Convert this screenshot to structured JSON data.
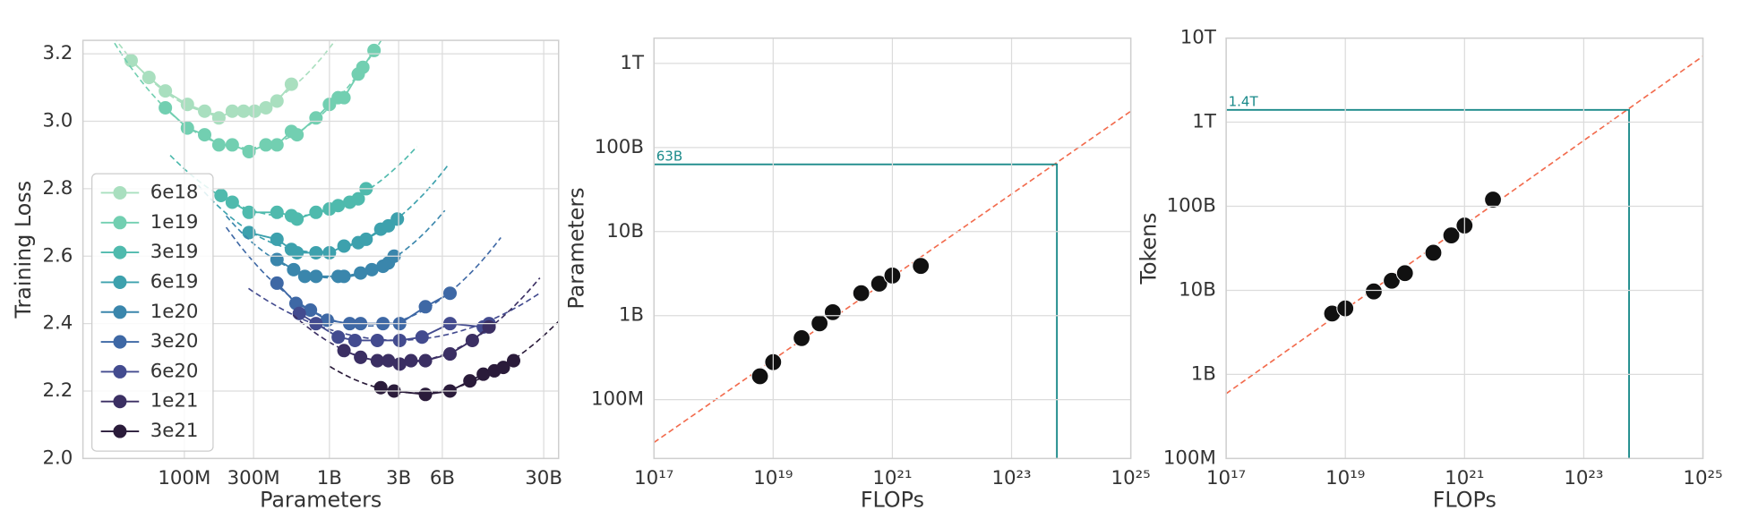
{
  "chart_data": [
    {
      "type": "line",
      "x_label": "Parameters",
      "y_label": "Training Loss",
      "xscale": "log",
      "grid": true,
      "legend": "lower left",
      "xlim": [
        20000000.0,
        38000000000.0
      ],
      "ylim": [
        2.0,
        3.24
      ],
      "xticks": [
        {
          "value": 100000000.0,
          "label": "100M"
        },
        {
          "value": 300000000.0,
          "label": "300M"
        },
        {
          "value": 1000000000.0,
          "label": "1B"
        },
        {
          "value": 3000000000.0,
          "label": "3B"
        },
        {
          "value": 6000000000.0,
          "label": "6B"
        },
        {
          "value": 30000000000.0,
          "label": "30B"
        }
      ],
      "yticks": [
        {
          "value": 2.0,
          "label": "2.0"
        },
        2.2,
        2.4,
        2.6,
        2.8,
        {
          "value": 3.0,
          "label": "3.0"
        },
        3.2
      ],
      "series": [
        {
          "name": "6e18",
          "color": "#a9dfbf",
          "x": [
            43000000.0,
            57000000.0,
            74000000.0,
            105000000.0,
            138000000.0,
            173000000.0,
            214000000.0,
            256000000.0,
            305000000.0,
            365000000.0,
            435000000.0,
            547000000.0
          ],
          "values": [
            3.18,
            3.13,
            3.09,
            3.05,
            3.03,
            3.01,
            3.03,
            3.03,
            3.03,
            3.04,
            3.06,
            3.11
          ]
        },
        {
          "name": "1e19",
          "color": "#72cfb1",
          "x": [
            74000000.0,
            105000000.0,
            138000000.0,
            173000000.0,
            214000000.0,
            279000000.0,
            365000000.0,
            435000000.0,
            547000000.0,
            598000000.0,
            808000000.0,
            1000000000.0,
            1150000000.0,
            1260000000.0,
            1580000000.0,
            1700000000.0,
            2030000000.0
          ],
          "values": [
            3.04,
            2.98,
            2.96,
            2.93,
            2.93,
            2.91,
            2.93,
            2.93,
            2.97,
            2.96,
            3.01,
            3.05,
            3.07,
            3.07,
            3.14,
            3.16,
            3.21
          ]
        },
        {
          "name": "3e19",
          "color": "#4fbaad",
          "x": [
            179000000.0,
            214000000.0,
            279000000.0,
            435000000.0,
            547000000.0,
            598000000.0,
            808000000.0,
            1000000000.0,
            1150000000.0,
            1380000000.0,
            1580000000.0,
            1790000000.0
          ],
          "values": [
            2.78,
            2.76,
            2.73,
            2.73,
            2.72,
            2.71,
            2.73,
            2.74,
            2.75,
            2.76,
            2.77,
            2.8
          ]
        },
        {
          "name": "6e19",
          "color": "#3da1ad",
          "x": [
            279000000.0,
            435000000.0,
            547000000.0,
            598000000.0,
            808000000.0,
            1000000000.0,
            1260000000.0,
            1580000000.0,
            1790000000.0,
            2260000000.0,
            2550000000.0,
            2940000000.0
          ],
          "values": [
            2.67,
            2.65,
            2.62,
            2.61,
            2.61,
            2.61,
            2.63,
            2.64,
            2.65,
            2.68,
            2.69,
            2.71
          ]
        },
        {
          "name": "1e20",
          "color": "#3a86ac",
          "x": [
            435000000.0,
            567000000.0,
            677000000.0,
            808000000.0,
            1150000000.0,
            1260000000.0,
            1640000000.0,
            1960000000.0,
            2340000000.0,
            2550000000.0,
            2790000000.0
          ],
          "values": [
            2.59,
            2.56,
            2.54,
            2.54,
            2.54,
            2.54,
            2.55,
            2.56,
            2.57,
            2.58,
            2.6
          ]
        },
        {
          "name": "3e20",
          "color": "#3e68a5",
          "x": [
            435000000.0,
            588000000.0,
            740000000.0,
            966000000.0,
            1380000000.0,
            1640000000.0,
            2340000000.0,
            3050000000.0,
            4590000000.0,
            6780000000.0
          ],
          "values": [
            2.52,
            2.46,
            2.44,
            2.41,
            2.4,
            2.4,
            2.4,
            2.4,
            2.45,
            2.49
          ]
        },
        {
          "name": "6e20",
          "color": "#434b8f",
          "x": [
            620000000.0,
            808000000.0,
            1150000000.0,
            1500000000.0,
            2140000000.0,
            3050000000.0,
            4350000000.0,
            6780000000.0,
            11500000000.0,
            12600000000.0
          ],
          "values": [
            2.43,
            2.4,
            2.36,
            2.35,
            2.35,
            2.35,
            2.36,
            2.4,
            2.39,
            2.4
          ]
        },
        {
          "name": "1e21",
          "color": "#3b2f63",
          "x": [
            1260000000.0,
            1640000000.0,
            2140000000.0,
            2550000000.0,
            3050000000.0,
            3650000000.0,
            4590000000.0,
            6780000000.0,
            9660000000.0,
            12600000000.0
          ],
          "values": [
            2.32,
            2.3,
            2.29,
            2.29,
            2.28,
            2.29,
            2.29,
            2.31,
            2.35,
            2.39
          ]
        },
        {
          "name": "3e21",
          "color": "#2a1b3a",
          "x": [
            2260000000.0,
            2790000000.0,
            4590000000.0,
            6780000000.0,
            9300000000.0,
            11500000000.0,
            13700000000.0,
            15800000000.0,
            18600000000.0
          ],
          "values": [
            2.21,
            2.2,
            2.19,
            2.2,
            2.23,
            2.25,
            2.26,
            2.27,
            2.29
          ]
        }
      ]
    },
    {
      "type": "scatter",
      "x_label": "FLOPs",
      "y_label": "Parameters",
      "xscale": "log",
      "yscale": "log",
      "grid": true,
      "color": "#111111",
      "xlim": [
        1e+17,
        1e+25
      ],
      "ylim": [
        20000000.0,
        2000000000000.0
      ],
      "xticks": [
        {
          "value": 1e+17,
          "label": "10¹⁷"
        },
        {
          "value": 1e+19,
          "label": "10¹⁹"
        },
        {
          "value": 1e+21,
          "label": "10²¹"
        },
        {
          "value": 1e+23,
          "label": "10²³"
        },
        {
          "value": 1e+25,
          "label": "10²⁵"
        }
      ],
      "yticks": [
        {
          "value": 100000000.0,
          "label": "100M"
        },
        {
          "value": 1000000000.0,
          "label": "1B"
        },
        {
          "value": 10000000000.0,
          "label": "10B"
        },
        {
          "value": 100000000000.0,
          "label": "100B"
        },
        {
          "value": 1000000000000.0,
          "label": "1T"
        }
      ],
      "x": [
        6e+18,
        1e+19,
        3e+19,
        6e+19,
        1e+20,
        3e+20,
        6e+20,
        1e+21,
        3e+21
      ],
      "values": [
        190000000.0,
        280000000.0,
        540000000.0,
        810000000.0,
        1100000000.0,
        1850000000.0,
        2400000000.0,
        3000000000.0,
        3900000000.0
      ],
      "fit": {
        "color": "#f26b4d",
        "x": [
          1e+17,
          1e+25
        ],
        "values": [
          31000000.0,
          270000000000.0
        ]
      },
      "annotation": {
        "color": "#1a8a8a",
        "x": 5.76e+23,
        "y": 63000000000.0,
        "text": "63B"
      }
    },
    {
      "type": "scatter",
      "x_label": "FLOPs",
      "y_label": "Tokens",
      "xscale": "log",
      "yscale": "log",
      "grid": true,
      "color": "#111111",
      "xlim": [
        1e+17,
        1e+25
      ],
      "ylim": [
        100000000.0,
        10000000000000.0
      ],
      "xticks": [
        {
          "value": 1e+17,
          "label": "10¹⁷"
        },
        {
          "value": 1e+19,
          "label": "10¹⁹"
        },
        {
          "value": 1e+21,
          "label": "10²¹"
        },
        {
          "value": 1e+23,
          "label": "10²³"
        },
        {
          "value": 1e+25,
          "label": "10²⁵"
        }
      ],
      "yticks": [
        {
          "value": 100000000.0,
          "label": "100M"
        },
        {
          "value": 1000000000.0,
          "label": "1B"
        },
        {
          "value": 10000000000.0,
          "label": "10B"
        },
        {
          "value": 100000000000.0,
          "label": "100B"
        },
        {
          "value": 1000000000000.0,
          "label": "1T"
        },
        {
          "value": 10000000000000.0,
          "label": "10T"
        }
      ],
      "x": [
        6e+18,
        1e+19,
        3e+19,
        6e+19,
        1e+20,
        3e+20,
        6e+20,
        1e+21,
        3e+21
      ],
      "values": [
        5300000000.0,
        6100000000.0,
        9700000000.0,
        13000000000.0,
        16000000000.0,
        28000000000.0,
        45000000000.0,
        59000000000.0,
        120000000000.0
      ],
      "fit": {
        "color": "#f26b4d",
        "x": [
          1e+17,
          1e+25
        ],
        "values": [
          590000000.0,
          6100000000000.0
        ]
      },
      "annotation": {
        "color": "#1a8a8a",
        "x": 5.76e+23,
        "y": 1400000000000.0,
        "text": "1.4T"
      }
    }
  ]
}
